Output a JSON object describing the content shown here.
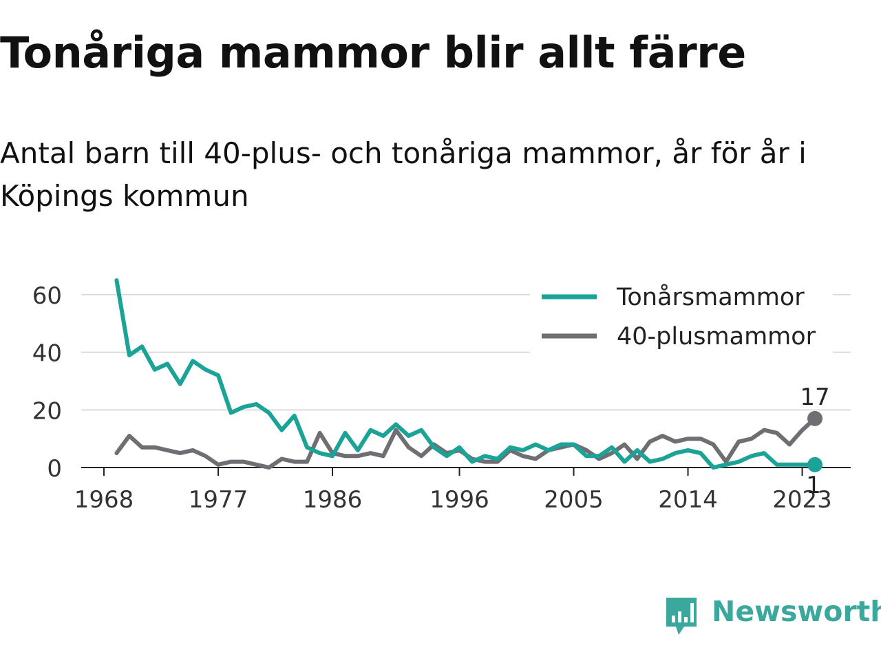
{
  "title": "Tonåriga mammor blir allt färre",
  "subtitle": "Antal barn till 40-plus- och tonåriga mammor, år för år i Köpings kommun",
  "brand": {
    "name": "Newsworthy",
    "icon": "newsworthy-logo-icon",
    "color": "#3aa89d"
  },
  "chart_data": {
    "type": "line",
    "title": "Tonåriga mammor blir allt färre",
    "xlabel": "",
    "ylabel": "",
    "xlim": [
      1968,
      2024
    ],
    "ylim": [
      0,
      65
    ],
    "y_ticks": [
      0,
      20,
      40,
      60
    ],
    "x_ticks": [
      1968,
      1977,
      1986,
      1996,
      2005,
      2014,
      2023
    ],
    "grid": true,
    "legend_position": "top-right",
    "x": [
      1969,
      1970,
      1971,
      1972,
      1973,
      1974,
      1975,
      1976,
      1977,
      1978,
      1979,
      1980,
      1981,
      1982,
      1983,
      1984,
      1985,
      1986,
      1987,
      1988,
      1989,
      1990,
      1991,
      1992,
      1993,
      1994,
      1995,
      1996,
      1997,
      1998,
      1999,
      2000,
      2001,
      2002,
      2003,
      2004,
      2005,
      2006,
      2007,
      2008,
      2009,
      2010,
      2011,
      2012,
      2013,
      2014,
      2015,
      2016,
      2017,
      2018,
      2019,
      2020,
      2021,
      2022,
      2023,
      2024
    ],
    "series": [
      {
        "name": "Tonårsmammor",
        "color": "#1aa396",
        "values": [
          65,
          39,
          42,
          34,
          36,
          29,
          37,
          34,
          32,
          19,
          21,
          22,
          19,
          13,
          18,
          7,
          5,
          4,
          12,
          6,
          13,
          11,
          15,
          11,
          13,
          7,
          4,
          7,
          2,
          4,
          3,
          7,
          6,
          8,
          6,
          8,
          8,
          4,
          4,
          7,
          2,
          6,
          2,
          3,
          5,
          6,
          5,
          0,
          1,
          2,
          4,
          5,
          1,
          1,
          1,
          1
        ],
        "end_label": "1"
      },
      {
        "name": "40-plusmammor",
        "color": "#6e6e73",
        "values": [
          5,
          11,
          7,
          7,
          6,
          5,
          6,
          4,
          1,
          2,
          2,
          1,
          0,
          3,
          2,
          2,
          12,
          5,
          4,
          4,
          5,
          4,
          13,
          7,
          4,
          8,
          5,
          6,
          3,
          2,
          2,
          6,
          4,
          3,
          6,
          7,
          8,
          6,
          3,
          5,
          8,
          3,
          9,
          11,
          9,
          10,
          10,
          8,
          2,
          9,
          10,
          13,
          12,
          8,
          13,
          17
        ],
        "end_label": "17"
      }
    ]
  }
}
